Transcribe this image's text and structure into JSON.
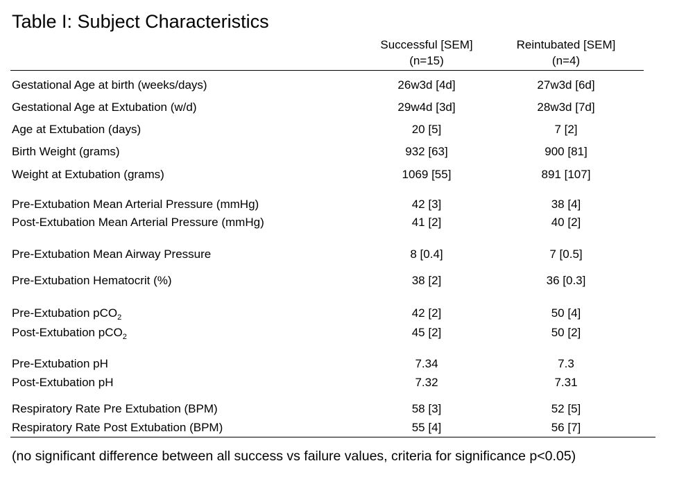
{
  "title": "Table I: Subject Characteristics",
  "columns": {
    "successful": {
      "name": "Successful [SEM]",
      "n": "(n=15)"
    },
    "reintubated": {
      "name": "Reintubated [SEM]",
      "n": "(n=4)"
    }
  },
  "rows": [
    {
      "label": "Gestational Age at birth (weeks/days)",
      "successful": "26w3d [4d]",
      "reintubated": "27w3d [6d]"
    },
    {
      "label": "Gestational Age at Extubation (w/d)",
      "successful": "29w4d [3d]",
      "reintubated": "28w3d [7d]"
    },
    {
      "label": "Age at Extubation (days)",
      "successful": "20 [5]",
      "reintubated": "7 [2]"
    },
    {
      "label": "Birth Weight (grams)",
      "successful": "932 [63]",
      "reintubated": "900 [81]"
    },
    {
      "label": "Weight at Extubation (grams)",
      "successful": "1069 [55]",
      "reintubated": "891 [107]"
    },
    {
      "label": "Pre-Extubation Mean Arterial Pressure (mmHg)",
      "successful": "42 [3]",
      "reintubated": "38 [4]"
    },
    {
      "label": "Post-Extubation Mean Arterial Pressure (mmHg)",
      "successful": "41 [2]",
      "reintubated": "40 [2]"
    },
    {
      "label": "Pre-Extubation Mean Airway Pressure",
      "successful": "8 [0.4]",
      "reintubated": "7 [0.5]"
    },
    {
      "label": "Pre-Extubation Hematocrit (%)",
      "successful": "38 [2]",
      "reintubated": "36 [0.3]"
    },
    {
      "label": "Pre-Extubation pCO",
      "label_sub": "2",
      "successful": "42 [2]",
      "reintubated": "50 [4]"
    },
    {
      "label": "Post-Extubation pCO",
      "label_sub": "2",
      "successful": "45 [2]",
      "reintubated": "50 [2]"
    },
    {
      "label": "Pre-Extubation pH",
      "successful": "7.34",
      "reintubated": "7.3"
    },
    {
      "label": "Post-Extubation pH",
      "successful": "7.32",
      "reintubated": "7.31"
    },
    {
      "label": "Respiratory Rate Pre Extubation (BPM)",
      "successful": "58 [3]",
      "reintubated": "52 [5]"
    },
    {
      "label": "Respiratory Rate Post Extubation  (BPM)",
      "successful": "55 [4]",
      "reintubated": "56 [7]"
    }
  ],
  "footnote": "(no significant difference between all success vs failure values, criteria for significance p<0.05)"
}
